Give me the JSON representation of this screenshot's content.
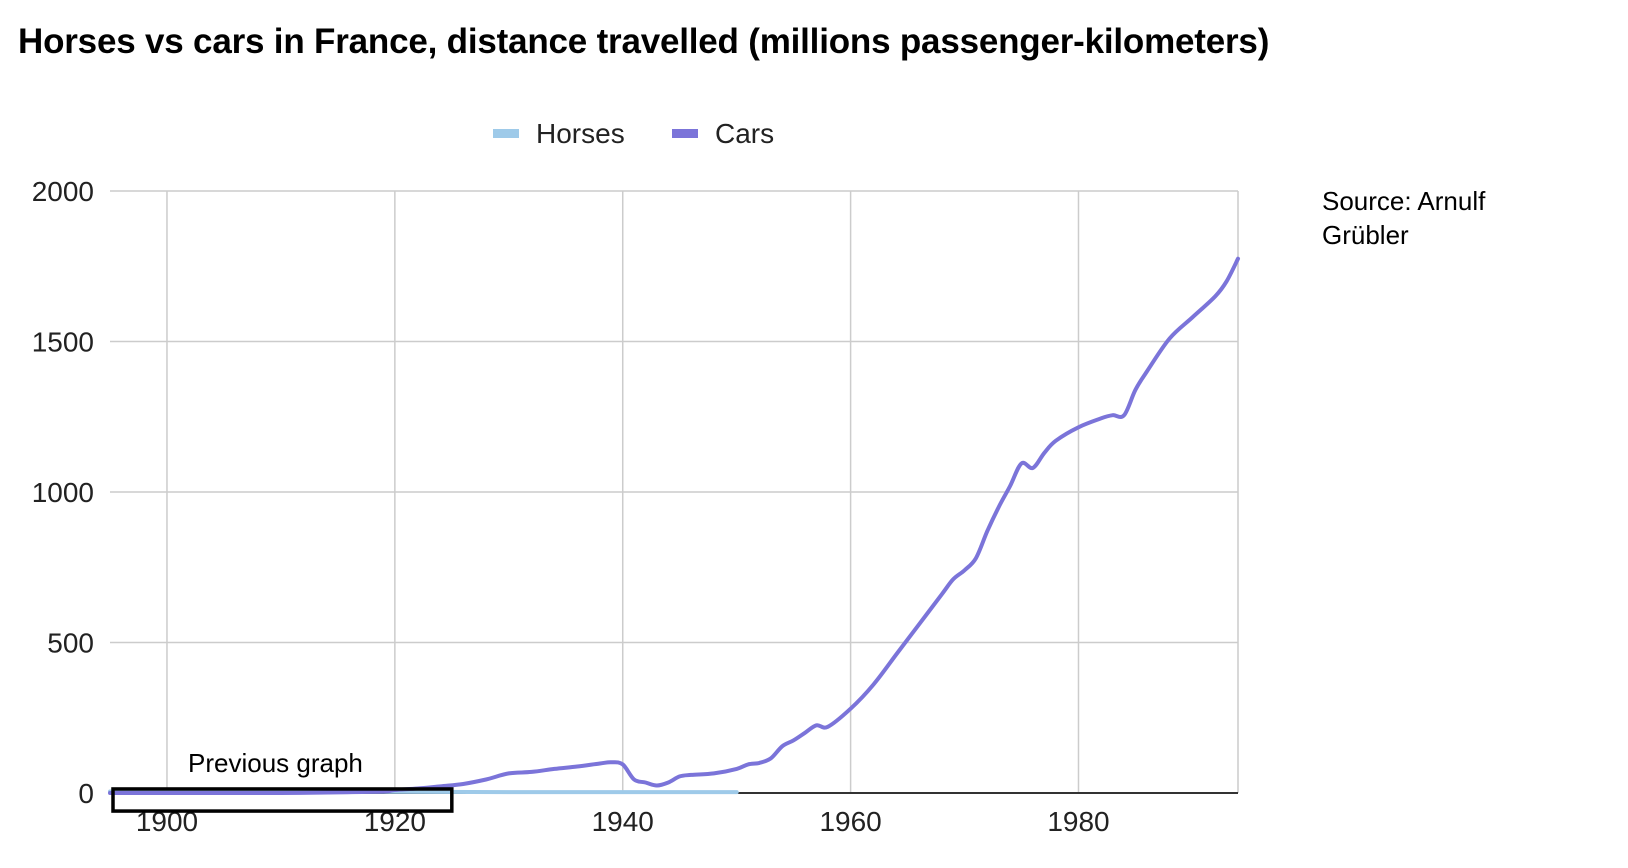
{
  "title": "Horses vs cars in France, distance travelled (millions passenger-kilometers)",
  "source_note": "Source: Arnulf Grübler",
  "chart_data": {
    "type": "line",
    "title": "Horses vs cars in France, distance travelled (millions passenger-kilometers)",
    "xlabel": "",
    "ylabel": "",
    "xlim": [
      1895,
      1994
    ],
    "ylim": [
      0,
      2000
    ],
    "x_ticks": [
      1900,
      1920,
      1940,
      1960,
      1980
    ],
    "y_ticks": [
      0,
      500,
      1000,
      1500,
      2000
    ],
    "grid": true,
    "legend_position": "top-center",
    "series": [
      {
        "name": "Horses",
        "color": "#9ecae9",
        "x": [
          1895,
          1900,
          1910,
          1920,
          1930,
          1940,
          1950
        ],
        "y": [
          5,
          5,
          5,
          4,
          3,
          3,
          3
        ]
      },
      {
        "name": "Cars",
        "color": "#7b74d9",
        "x": [
          1895,
          1900,
          1905,
          1910,
          1915,
          1919,
          1920,
          1922,
          1924,
          1926,
          1928,
          1930,
          1932,
          1934,
          1936,
          1938,
          1939,
          1940,
          1941,
          1942,
          1943,
          1944,
          1945,
          1946,
          1948,
          1950,
          1951,
          1952,
          1953,
          1954,
          1955,
          1956,
          1957,
          1958,
          1960,
          1962,
          1964,
          1966,
          1968,
          1969,
          1970,
          1971,
          1972,
          1973,
          1974,
          1975,
          1976,
          1977,
          1978,
          1980,
          1982,
          1983,
          1984,
          1985,
          1986,
          1988,
          1990,
          1992,
          1993,
          1994
        ],
        "y": [
          0,
          0,
          0,
          0,
          2,
          5,
          10,
          15,
          22,
          30,
          45,
          65,
          70,
          80,
          88,
          98,
          102,
          95,
          45,
          35,
          25,
          35,
          55,
          60,
          65,
          80,
          95,
          100,
          115,
          155,
          175,
          200,
          225,
          220,
          280,
          360,
          460,
          560,
          660,
          710,
          740,
          780,
          870,
          950,
          1020,
          1095,
          1080,
          1130,
          1170,
          1215,
          1245,
          1255,
          1255,
          1340,
          1400,
          1510,
          1580,
          1650,
          1700,
          1775
        ]
      }
    ],
    "annotations": [
      {
        "text": "Previous graph",
        "x_range": [
          1895,
          1925
        ],
        "y_range": [
          -60,
          40
        ]
      }
    ]
  }
}
